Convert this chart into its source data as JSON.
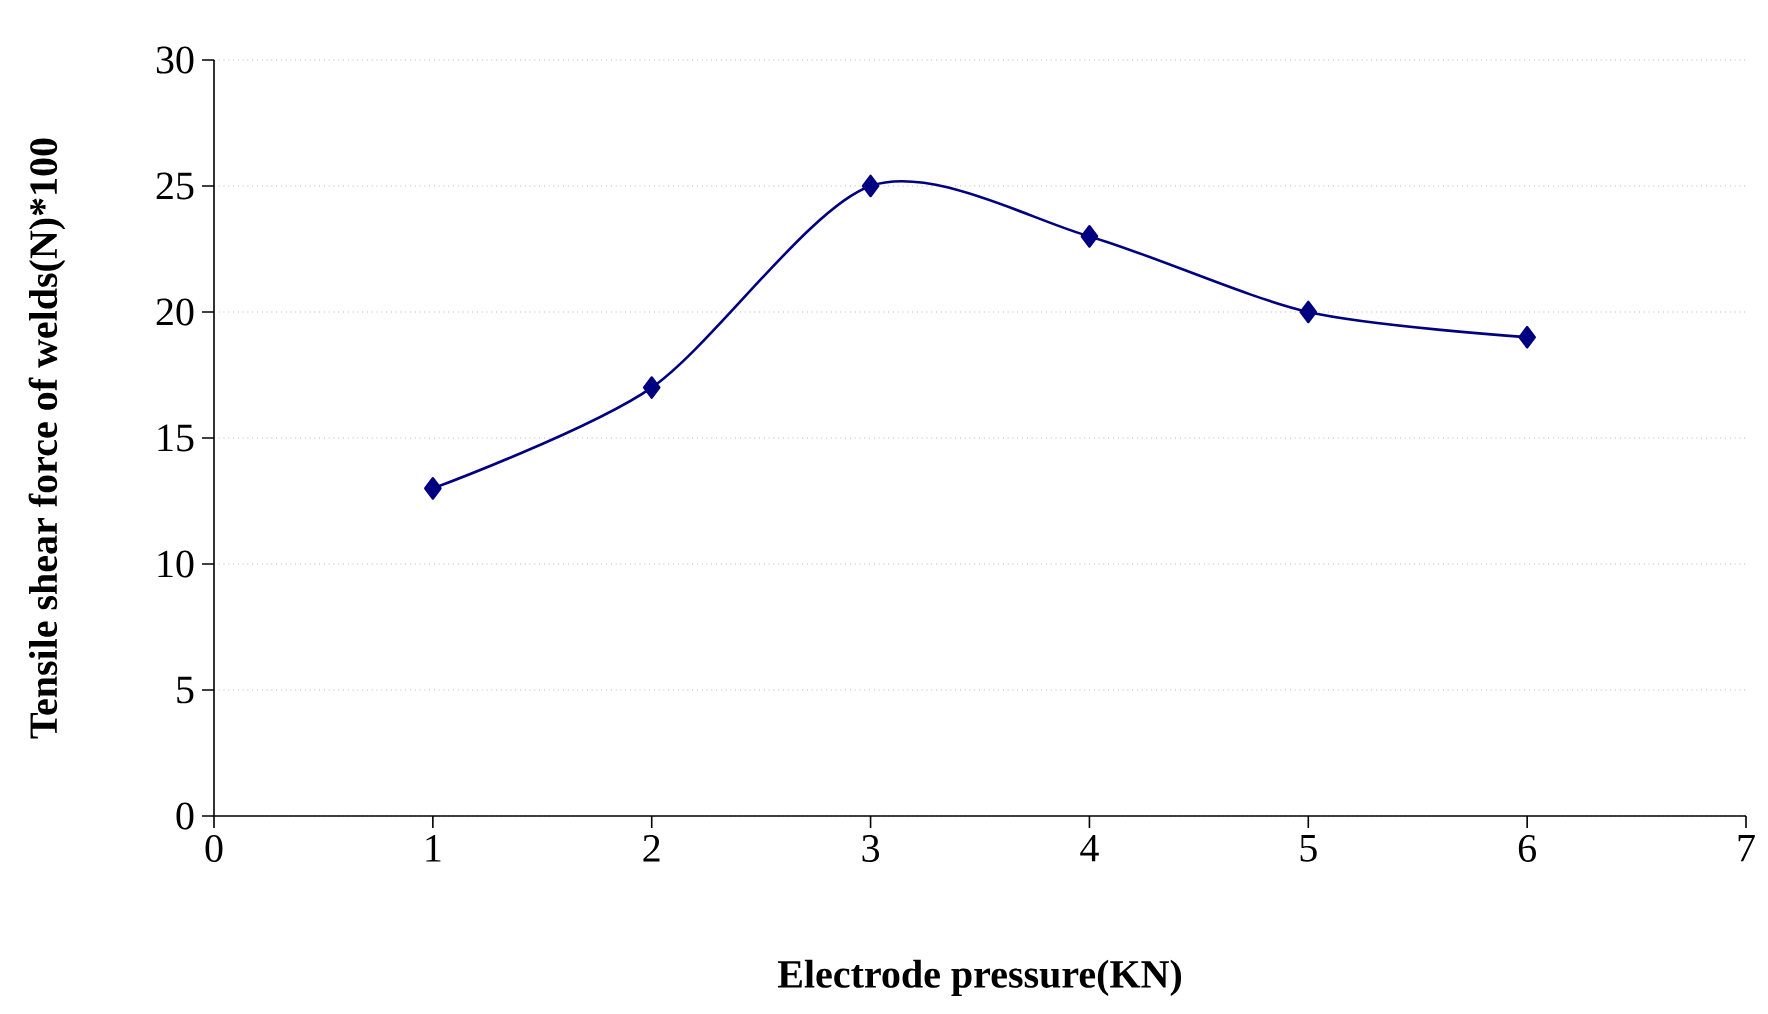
{
  "chart_data": {
    "type": "line",
    "xlabel": "Electrode pressure(KN)",
    "ylabel": "Tensile shear force of welds(N)*100",
    "x": [
      1,
      2,
      3,
      4,
      5,
      6
    ],
    "series": [
      {
        "color": "#000080",
        "values": [
          13,
          17,
          25,
          23,
          20,
          19
        ]
      }
    ],
    "xlim": [
      0,
      7
    ],
    "xticks": [
      0,
      1,
      2,
      3,
      4,
      5,
      6,
      7
    ],
    "ylim": [
      0,
      30
    ],
    "yticks": [
      0,
      5,
      10,
      15,
      20,
      25,
      30
    ],
    "grid": "y",
    "marker": "diamond",
    "line_style": "solid"
  }
}
